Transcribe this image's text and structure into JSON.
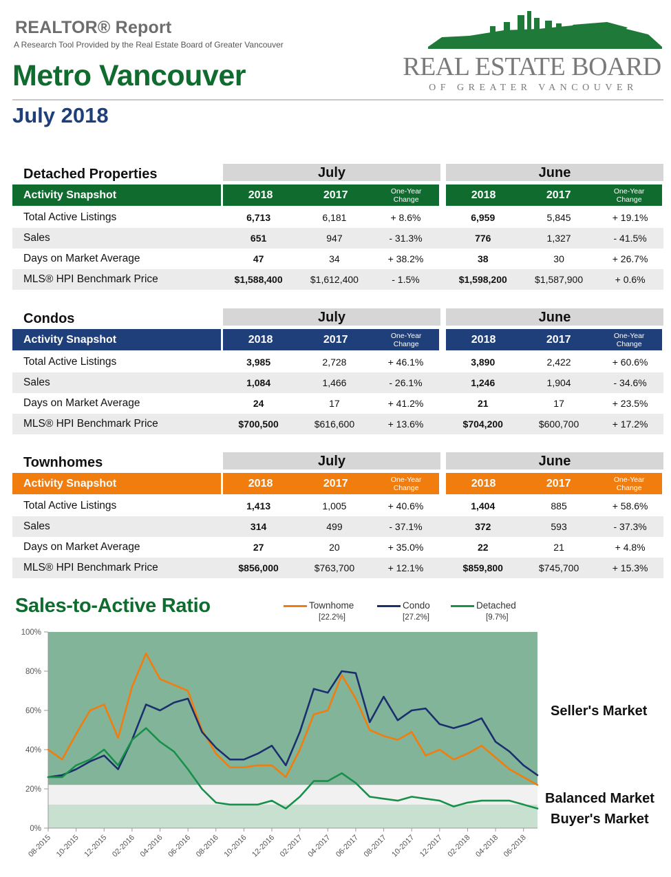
{
  "header": {
    "brand": "REALTOR® Report",
    "tagline": "A Research Tool Provided by the Real Estate Board of Greater Vancouver",
    "region": "Metro Vancouver",
    "period": "July 2018",
    "logo_line1": "REAL ESTATE BOARD",
    "logo_line2": "OF GREATER VANCOUVER"
  },
  "tables": [
    {
      "title": "Detached Properties",
      "accent": "#0f6b2e",
      "period_a": "July",
      "period_b": "June",
      "snapshot_label": "Activity Snapshot",
      "col_year1": "2018",
      "col_year2": "2017",
      "col_change": "One-Year Change",
      "rows": [
        {
          "label": "Total Active Listings",
          "a18": "6,713",
          "a17": "6,181",
          "achg": "+ 8.6%",
          "b18": "6,959",
          "b17": "5,845",
          "bchg": "+ 19.1%"
        },
        {
          "label": "Sales",
          "a18": "651",
          "a17": "947",
          "achg": "- 31.3%",
          "b18": "776",
          "b17": "1,327",
          "bchg": "- 41.5%"
        },
        {
          "label": "Days on Market Average",
          "a18": "47",
          "a17": "34",
          "achg": "+ 38.2%",
          "b18": "38",
          "b17": "30",
          "bchg": "+ 26.7%"
        },
        {
          "label": "MLS® HPI Benchmark Price",
          "a18": "$1,588,400",
          "a17": "$1,612,400",
          "achg": "- 1.5%",
          "b18": "$1,598,200",
          "b17": "$1,587,900",
          "bchg": "+ 0.6%"
        }
      ]
    },
    {
      "title": "Condos",
      "accent": "#1f3f7a",
      "period_a": "July",
      "period_b": "June",
      "snapshot_label": "Activity Snapshot",
      "col_year1": "2018",
      "col_year2": "2017",
      "col_change": "One-Year Change",
      "rows": [
        {
          "label": "Total Active Listings",
          "a18": "3,985",
          "a17": "2,728",
          "achg": "+ 46.1%",
          "b18": "3,890",
          "b17": "2,422",
          "bchg": "+ 60.6%"
        },
        {
          "label": "Sales",
          "a18": "1,084",
          "a17": "1,466",
          "achg": "- 26.1%",
          "b18": "1,246",
          "b17": "1,904",
          "bchg": "- 34.6%"
        },
        {
          "label": "Days on Market Average",
          "a18": "24",
          "a17": "17",
          "achg": "+ 41.2%",
          "b18": "21",
          "b17": "17",
          "bchg": "+ 23.5%"
        },
        {
          "label": "MLS® HPI Benchmark Price",
          "a18": "$700,500",
          "a17": "$616,600",
          "achg": "+ 13.6%",
          "b18": "$704,200",
          "b17": "$600,700",
          "bchg": "+ 17.2%"
        }
      ]
    },
    {
      "title": "Townhomes",
      "accent": "#f07d0e",
      "period_a": "July",
      "period_b": "June",
      "snapshot_label": "Activity Snapshot",
      "col_year1": "2018",
      "col_year2": "2017",
      "col_change": "One-Year Change",
      "rows": [
        {
          "label": "Total Active Listings",
          "a18": "1,413",
          "a17": "1,005",
          "achg": "+ 40.6%",
          "b18": "1,404",
          "b17": "885",
          "bchg": "+ 58.6%"
        },
        {
          "label": "Sales",
          "a18": "314",
          "a17": "499",
          "achg": "- 37.1%",
          "b18": "372",
          "b17": "593",
          "bchg": "- 37.3%"
        },
        {
          "label": "Days on Market Average",
          "a18": "27",
          "a17": "20",
          "achg": "+ 35.0%",
          "b18": "22",
          "b17": "21",
          "bchg": "+ 4.8%"
        },
        {
          "label": "MLS® HPI Benchmark Price",
          "a18": "$856,000",
          "a17": "$763,700",
          "achg": "+ 12.1%",
          "b18": "$859,800",
          "b17": "$745,700",
          "bchg": "+ 15.3%"
        }
      ]
    }
  ],
  "chart_data": {
    "type": "line",
    "title": "Sales-to-Active Ratio",
    "xlabel": "",
    "ylabel": "",
    "ylim": [
      0,
      100
    ],
    "yticks": [
      "0%",
      "20%",
      "40%",
      "60%",
      "80%",
      "100%"
    ],
    "x_tick_labels": [
      "08-2015",
      "10-2015",
      "12-2015",
      "02-2016",
      "04-2016",
      "06-2016",
      "08-2016",
      "10-2016",
      "12-2016",
      "02-2017",
      "04-2017",
      "06-2017",
      "08-2017",
      "10-2017",
      "12-2017",
      "02-2018",
      "04-2018",
      "06-2018"
    ],
    "x": [
      "08-2015",
      "09-2015",
      "10-2015",
      "11-2015",
      "12-2015",
      "01-2016",
      "02-2016",
      "03-2016",
      "04-2016",
      "05-2016",
      "06-2016",
      "07-2016",
      "08-2016",
      "09-2016",
      "10-2016",
      "11-2016",
      "12-2016",
      "01-2017",
      "02-2017",
      "03-2017",
      "04-2017",
      "05-2017",
      "06-2017",
      "07-2017",
      "08-2017",
      "09-2017",
      "10-2017",
      "11-2017",
      "12-2017",
      "01-2018",
      "02-2018",
      "03-2018",
      "04-2018",
      "05-2018",
      "06-2018",
      "07-2018"
    ],
    "zones": [
      {
        "name": "Seller's Market",
        "from": 22,
        "to": 100,
        "color": "#82b49a"
      },
      {
        "name": "Balanced Market",
        "from": 12,
        "to": 22,
        "color": "#f1f1f1"
      },
      {
        "name": "Buyer's Market",
        "from": 0,
        "to": 12,
        "color": "#c7e0d0"
      }
    ],
    "series": [
      {
        "name": "Townhome",
        "legend_value": "[22.2%]",
        "color": "#f07d0e",
        "values": [
          40,
          35,
          48,
          60,
          63,
          46,
          72,
          89,
          76,
          73,
          70,
          50,
          38,
          31,
          31,
          32,
          32,
          26,
          40,
          58,
          60,
          78,
          66,
          50,
          47,
          45,
          49,
          37,
          40,
          35,
          38,
          42,
          36,
          30,
          26,
          22
        ]
      },
      {
        "name": "Condo",
        "legend_value": "[27.2%]",
        "color": "#1a2f6b",
        "values": [
          26,
          27,
          30,
          34,
          37,
          30,
          45,
          63,
          60,
          64,
          66,
          49,
          41,
          35,
          35,
          38,
          42,
          32,
          49,
          71,
          69,
          80,
          79,
          54,
          67,
          55,
          60,
          61,
          53,
          51,
          53,
          56,
          44,
          39,
          32,
          27
        ]
      },
      {
        "name": "Detached",
        "legend_value": "[9.7%]",
        "color": "#17904a",
        "values": [
          26,
          26,
          32,
          35,
          40,
          32,
          45,
          51,
          44,
          39,
          30,
          20,
          13,
          12,
          12,
          12,
          14,
          10,
          16,
          24,
          24,
          28,
          23,
          16,
          15,
          14,
          16,
          15,
          14,
          11,
          13,
          14,
          14,
          14,
          12,
          10
        ]
      }
    ]
  }
}
